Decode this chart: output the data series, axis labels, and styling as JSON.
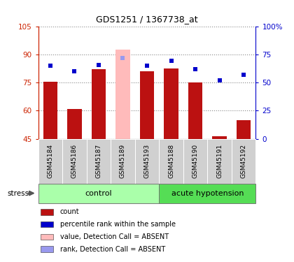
{
  "title": "GDS1251 / 1367738_at",
  "samples": [
    "GSM45184",
    "GSM45186",
    "GSM45187",
    "GSM45189",
    "GSM45193",
    "GSM45188",
    "GSM45190",
    "GSM45191",
    "GSM45192"
  ],
  "bar_values": [
    75.5,
    61.0,
    82.0,
    92.5,
    81.0,
    82.5,
    75.0,
    46.5,
    55.0
  ],
  "bar_colors": [
    "#bb1111",
    "#bb1111",
    "#bb1111",
    "#ffbbbb",
    "#bb1111",
    "#bb1111",
    "#bb1111",
    "#bb1111",
    "#bb1111"
  ],
  "dot_values": [
    84.0,
    81.0,
    84.5,
    88.0,
    84.0,
    86.5,
    82.0,
    76.0,
    79.0
  ],
  "dot_colors": [
    "#0000cc",
    "#0000cc",
    "#0000cc",
    "#9999ee",
    "#0000cc",
    "#0000cc",
    "#0000cc",
    "#0000cc",
    "#0000cc"
  ],
  "absent_index": 3,
  "ylim_left": [
    45,
    105
  ],
  "ylim_right": [
    0,
    100
  ],
  "yticks_left": [
    45,
    60,
    75,
    90,
    105
  ],
  "yticks_right": [
    0,
    25,
    50,
    75,
    100
  ],
  "yticklabels_right": [
    "0",
    "25",
    "50",
    "75",
    "100%"
  ],
  "n_control": 5,
  "n_acute": 4,
  "control_label": "control",
  "acute_label": "acute hypotension",
  "stress_label": "stress",
  "legend_items": [
    {
      "label": "count",
      "color": "#bb1111"
    },
    {
      "label": "percentile rank within the sample",
      "color": "#0000cc"
    },
    {
      "label": "value, Detection Call = ABSENT",
      "color": "#ffbbbb"
    },
    {
      "label": "rank, Detection Call = ABSENT",
      "color": "#9999ee"
    }
  ],
  "grid_color": "#888888",
  "bar_width": 0.6,
  "ybase": 45,
  "cell_bg": "#d0d0d0",
  "ctrl_green": "#aaffaa",
  "acute_green": "#55dd55"
}
